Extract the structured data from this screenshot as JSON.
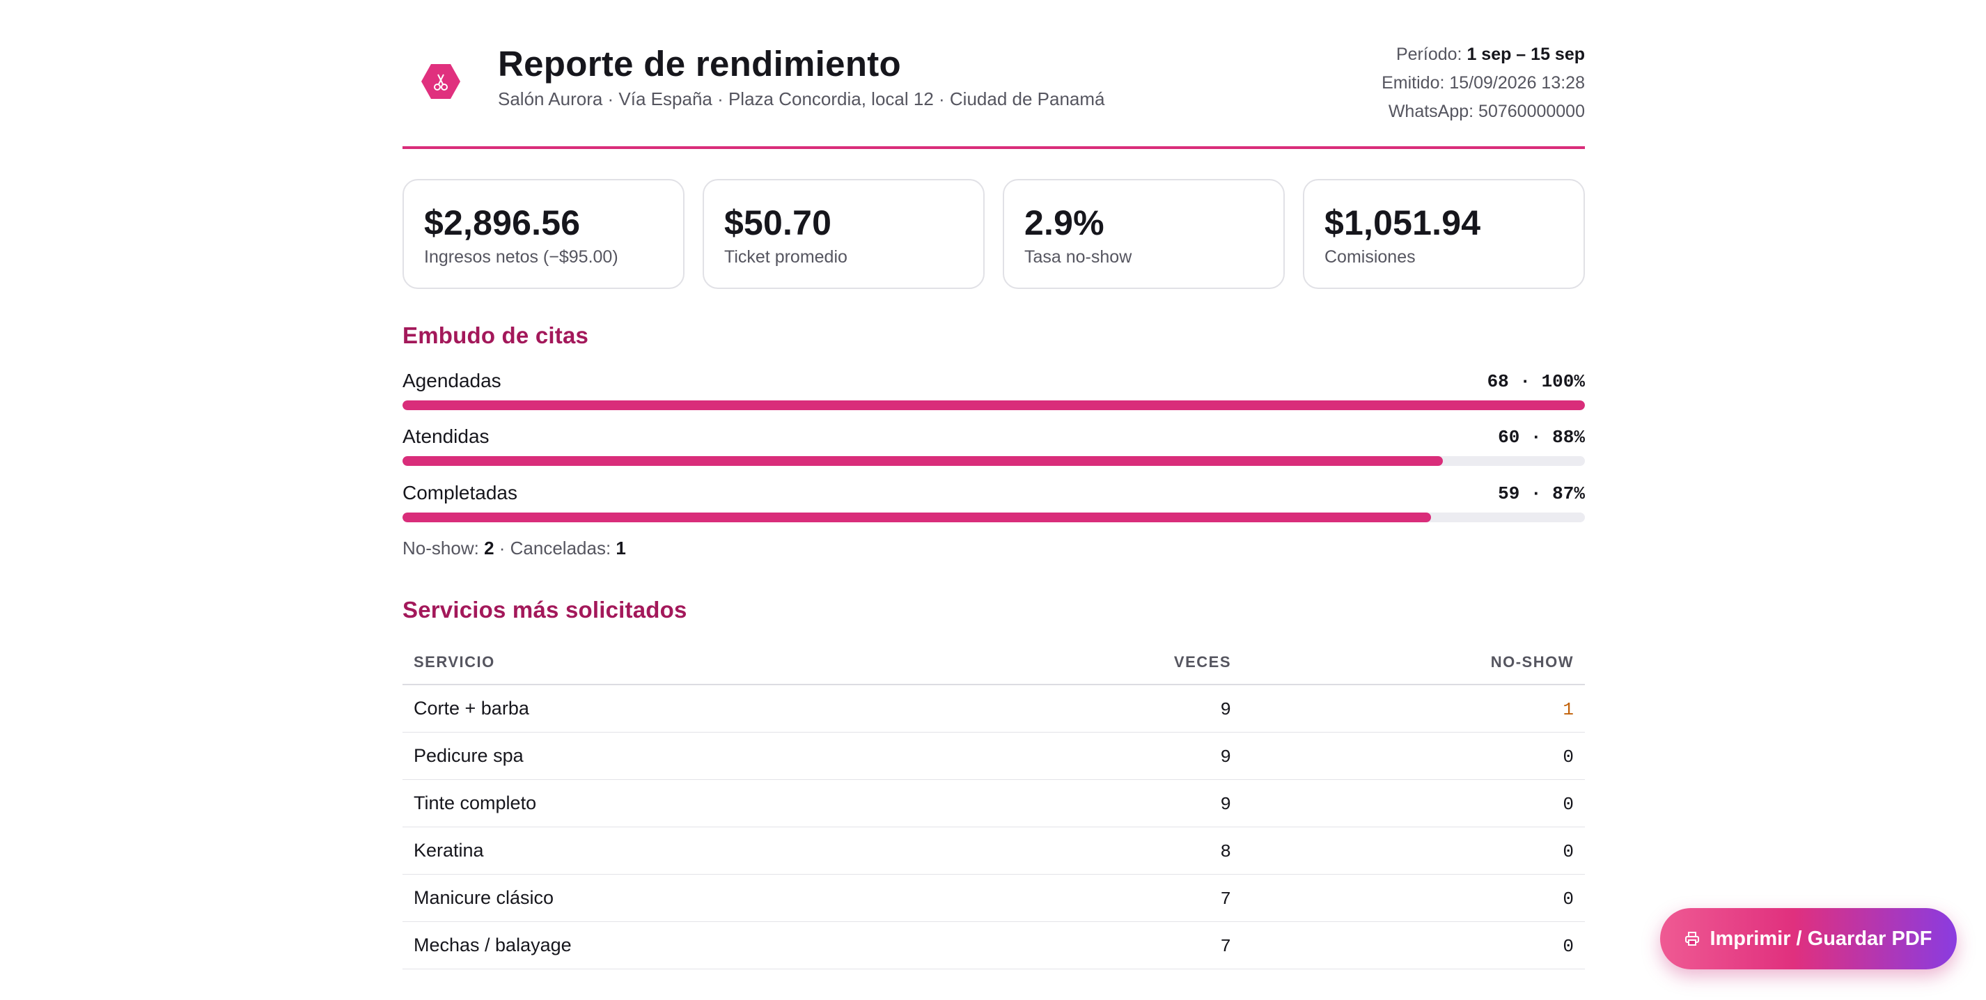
{
  "header": {
    "logo_icon": "scissors-hexagon-icon",
    "title": "Reporte de rendimiento",
    "subtitle": "Salón Aurora · Vía España · Plaza Concordia, local 12 · Ciudad de Panamá",
    "period_label": "Período:",
    "period_value": "1 sep – 15 sep",
    "issued": "Emitido: 15/09/2026 13:28",
    "whatsapp": "WhatsApp: 50760000000"
  },
  "kpis": [
    {
      "value": "$2,896.56",
      "label": "Ingresos netos (−$95.00)"
    },
    {
      "value": "$50.70",
      "label": "Ticket promedio"
    },
    {
      "value": "2.9%",
      "label": "Tasa no-show"
    },
    {
      "value": "$1,051.94",
      "label": "Comisiones"
    }
  ],
  "funnel": {
    "title": "Embudo de citas",
    "rows": [
      {
        "label": "Agendadas",
        "value": "68 · 100%",
        "fraction": 1.0
      },
      {
        "label": "Atendidas",
        "value": "60 · 88%",
        "fraction": 0.88
      },
      {
        "label": "Completadas",
        "value": "59 · 87%",
        "fraction": 0.87
      }
    ],
    "noshow_label": "No-show:",
    "noshow_value": "2",
    "cancel_label": "· Canceladas:",
    "cancel_value": "1"
  },
  "services": {
    "title": "Servicios más solicitados",
    "columns": [
      "SERVICIO",
      "VECES",
      "NO-SHOW"
    ],
    "rows": [
      {
        "service": "Corte + barba",
        "count": "9",
        "noshow": "1"
      },
      {
        "service": "Pedicure spa",
        "count": "9",
        "noshow": "0"
      },
      {
        "service": "Tinte completo",
        "count": "9",
        "noshow": "0"
      },
      {
        "service": "Keratina",
        "count": "8",
        "noshow": "0"
      },
      {
        "service": "Manicure clásico",
        "count": "7",
        "noshow": "0"
      },
      {
        "service": "Mechas / balayage",
        "count": "7",
        "noshow": "0"
      }
    ]
  },
  "actions": {
    "print_label": "Imprimir / Guardar PDF",
    "print_icon": "printer-icon"
  },
  "colors": {
    "accent": "#d92d7a",
    "section_title": "#a3185a",
    "warning": "#c2620a"
  }
}
